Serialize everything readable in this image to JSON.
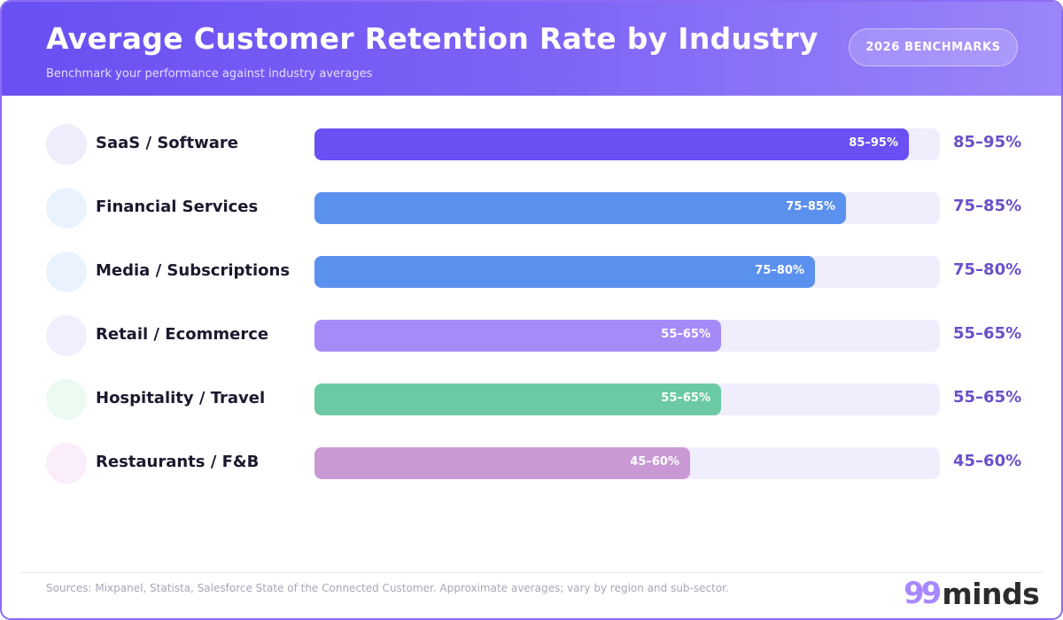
{
  "header": {
    "title": "Average Customer Retention Rate by Industry",
    "subtitle": "Benchmark your performance against industry averages",
    "badge": "2026 BENCHMARKS"
  },
  "chart_data": {
    "type": "bar",
    "orientation": "horizontal",
    "title": "Average Customer Retention Rate by Industry",
    "subtitle": "Benchmark your performance against industry averages",
    "categories": [
      "SaaS / Software",
      "Financial Services",
      "Media / Subscriptions",
      "Retail / Ecommerce",
      "Hospitality / Travel",
      "Restaurants / F&B"
    ],
    "ranges": [
      [
        85,
        95
      ],
      [
        75,
        85
      ],
      [
        75,
        80
      ],
      [
        55,
        65
      ],
      [
        55,
        65
      ],
      [
        45,
        60
      ]
    ],
    "labels": [
      "85–95%",
      "75–85%",
      "75–80%",
      "55–65%",
      "55–65%",
      "45–60%"
    ],
    "colors": [
      "#6a4ff2",
      "#5b91ee",
      "#5b91ee",
      "#a68bf8",
      "#6bcaa4",
      "#c899d5"
    ],
    "icon_colors": [
      "#efecfb",
      "#eaf3fd",
      "#eaf3fd",
      "#f1eefd",
      "#ebfbf2",
      "#faeefa"
    ],
    "xlim": [
      0,
      100
    ],
    "unit": "%",
    "grid": false,
    "legend": "none"
  },
  "footer": {
    "source": "Sources: Mixpanel, Statista, Salesforce State of the Connected Customer. Approximate averages; vary by region and sub-sector.",
    "logo_mark": "99",
    "logo_text": "minds"
  }
}
